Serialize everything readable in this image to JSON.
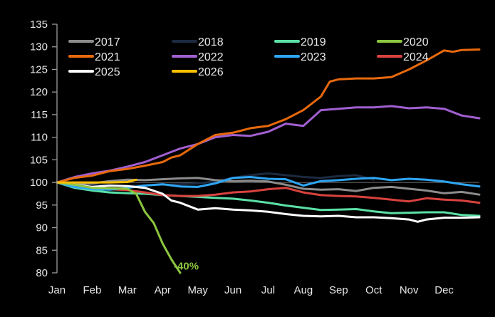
{
  "chart_data": {
    "type": "line",
    "title": "",
    "xlabel": "",
    "ylabel": "",
    "x_unit": "months since Jan 1 (0 = Jan, 12 = end of Dec)",
    "xlim": [
      0,
      12
    ],
    "ylim": [
      80,
      135
    ],
    "yticks": [
      80,
      85,
      90,
      95,
      100,
      105,
      110,
      115,
      120,
      125,
      130,
      135
    ],
    "xtick_labels": [
      "Jan",
      "Feb",
      "Mar",
      "Apr",
      "May",
      "Jun",
      "Jul",
      "Aug",
      "Sep",
      "Oct",
      "Nov",
      "Dec"
    ],
    "grid": false,
    "reference_line": 100,
    "legend": {
      "placement": "top-left",
      "columns": 4
    },
    "annotations": [
      {
        "text": "-40%",
        "series": "2020",
        "x": 3.3,
        "y": 81.5
      }
    ],
    "series": [
      {
        "name": "2017",
        "color": "#8c8c8c",
        "x": [
          0,
          0.5,
          1,
          1.5,
          2,
          2.5,
          3,
          3.5,
          4,
          4.5,
          5,
          5.5,
          6,
          6.5,
          7,
          7.5,
          8,
          8.5,
          9,
          9.5,
          10,
          10.5,
          11,
          11.5,
          12
        ],
        "values": [
          100,
          99.6,
          99.8,
          100.3,
          100.6,
          100.5,
          100.7,
          100.9,
          101,
          100.5,
          100.3,
          100.4,
          100.2,
          99.5,
          98.6,
          98.4,
          98.5,
          98.1,
          98.8,
          99,
          98.6,
          98.2,
          97.6,
          97.9,
          97.3
        ]
      },
      {
        "name": "2018",
        "color": "#1c2a3f",
        "x": [
          0,
          0.5,
          1,
          1.5,
          2,
          2.5,
          3,
          3.5,
          4,
          4.5,
          5,
          5.5,
          6,
          6.5,
          7,
          7.5,
          8,
          8.5,
          9
        ],
        "values": [
          100,
          99.7,
          99.5,
          99.3,
          99.2,
          99.4,
          99.5,
          99.6,
          99.8,
          100.2,
          101,
          101.6,
          102,
          101.6,
          101.2,
          101,
          101.4,
          101.6,
          100.6
        ]
      },
      {
        "name": "2019",
        "color": "#5be0a6",
        "x": [
          0,
          0.5,
          1,
          1.5,
          2,
          2.5,
          3,
          3.5,
          4,
          4.5,
          5,
          5.5,
          6,
          6.5,
          7,
          7.5,
          8,
          8.5,
          9,
          9.5,
          10,
          10.5,
          11,
          11.5,
          12
        ],
        "values": [
          100,
          98.8,
          98.2,
          97.8,
          97.6,
          97.5,
          97.2,
          97,
          96.8,
          96.6,
          96.4,
          96,
          95.5,
          94.9,
          94.4,
          93.9,
          94,
          94.1,
          93.6,
          93.2,
          93.3,
          93.4,
          93.4,
          92.8,
          92.6
        ]
      },
      {
        "name": "2020",
        "color": "#8cc63f",
        "x": [
          0,
          0.5,
          1,
          1.5,
          2,
          2.25,
          2.5,
          2.75,
          3,
          3.25,
          3.5
        ],
        "values": [
          100,
          99.5,
          98.8,
          98.7,
          98.6,
          97.5,
          93.5,
          91,
          86.5,
          83,
          80
        ]
      },
      {
        "name": "2021",
        "color": "#e8690c",
        "x": [
          0,
          0.5,
          1,
          1.5,
          2,
          2.5,
          3,
          3.25,
          3.5,
          4,
          4.5,
          5,
          5.5,
          6,
          6.5,
          7,
          7.5,
          7.75,
          8,
          8.5,
          9,
          9.5,
          10,
          10.5,
          11,
          11.25,
          11.5,
          12
        ],
        "values": [
          100,
          101,
          101.5,
          102.5,
          103,
          103.7,
          104.5,
          105.5,
          106,
          108.5,
          110.5,
          111,
          112,
          112.5,
          114,
          116,
          119,
          122.3,
          122.8,
          123,
          123,
          123.3,
          125,
          127,
          129.2,
          128.9,
          129.3,
          129.4
        ]
      },
      {
        "name": "2022",
        "color": "#a15fd0",
        "x": [
          0,
          0.5,
          1,
          1.5,
          2,
          2.5,
          3,
          3.5,
          4,
          4.5,
          5,
          5.5,
          6,
          6.5,
          7,
          7.5,
          8,
          8.5,
          9,
          9.5,
          10,
          10.5,
          11,
          11.5,
          12
        ],
        "values": [
          100,
          101.2,
          102,
          102.6,
          103.5,
          104.5,
          106,
          107.5,
          108.5,
          110,
          110.5,
          110.3,
          111.2,
          113,
          112.5,
          116,
          116.3,
          116.6,
          116.6,
          116.9,
          116.4,
          116.6,
          116.3,
          114.8,
          114.2
        ]
      },
      {
        "name": "2023",
        "color": "#2ea6f5",
        "x": [
          0,
          0.5,
          1,
          1.5,
          2,
          2.5,
          3,
          3.5,
          4,
          4.5,
          5,
          5.5,
          6,
          6.5,
          7,
          7.5,
          8,
          8.5,
          9,
          9.5,
          10,
          10.5,
          11,
          11.5,
          12
        ],
        "values": [
          100,
          99,
          98.5,
          98.4,
          98.8,
          99.3,
          99.6,
          99.1,
          99,
          99.8,
          101,
          101.2,
          100.8,
          100.7,
          99.3,
          100.3,
          100.5,
          100.8,
          101,
          100.5,
          100.8,
          100.6,
          100.2,
          99.6,
          99.1
        ]
      },
      {
        "name": "2024",
        "color": "#d8423e",
        "x": [
          0,
          0.5,
          1,
          1.5,
          2,
          2.5,
          3,
          3.5,
          4,
          4.5,
          5,
          5.5,
          6,
          6.5,
          7,
          7.5,
          8,
          8.5,
          9,
          9.5,
          10,
          10.5,
          11,
          11.5,
          12
        ],
        "values": [
          100,
          99.2,
          98.6,
          98.5,
          98.3,
          97.8,
          97.2,
          97,
          97,
          97.3,
          97.8,
          98,
          98.5,
          98.8,
          97.8,
          97.2,
          97,
          96.9,
          96.6,
          96.2,
          95.8,
          96.5,
          96.2,
          96,
          95.5
        ]
      },
      {
        "name": "2025",
        "color": "#ffffff",
        "x": [
          0,
          0.5,
          1,
          1.5,
          2,
          2.5,
          3,
          3.25,
          3.5,
          4,
          4.5,
          5,
          5.5,
          6,
          6.5,
          7,
          7.5,
          8,
          8.5,
          9,
          9.5,
          10,
          10.25,
          10.5,
          11,
          11.5,
          12
        ],
        "values": [
          100,
          99.5,
          99,
          99.3,
          99.2,
          98.8,
          97.5,
          96,
          95.5,
          94,
          94.3,
          94,
          93.8,
          93.5,
          93,
          92.6,
          92.5,
          92.6,
          92.3,
          92.3,
          92.1,
          91.8,
          91.3,
          91.8,
          92.2,
          92.2,
          92.3
        ]
      },
      {
        "name": "2026",
        "color": "#ffc000",
        "x": [
          0,
          0.5,
          1,
          1.5,
          2,
          2.25
        ],
        "values": [
          100,
          100,
          100,
          100,
          100.1,
          100.6
        ]
      }
    ]
  }
}
